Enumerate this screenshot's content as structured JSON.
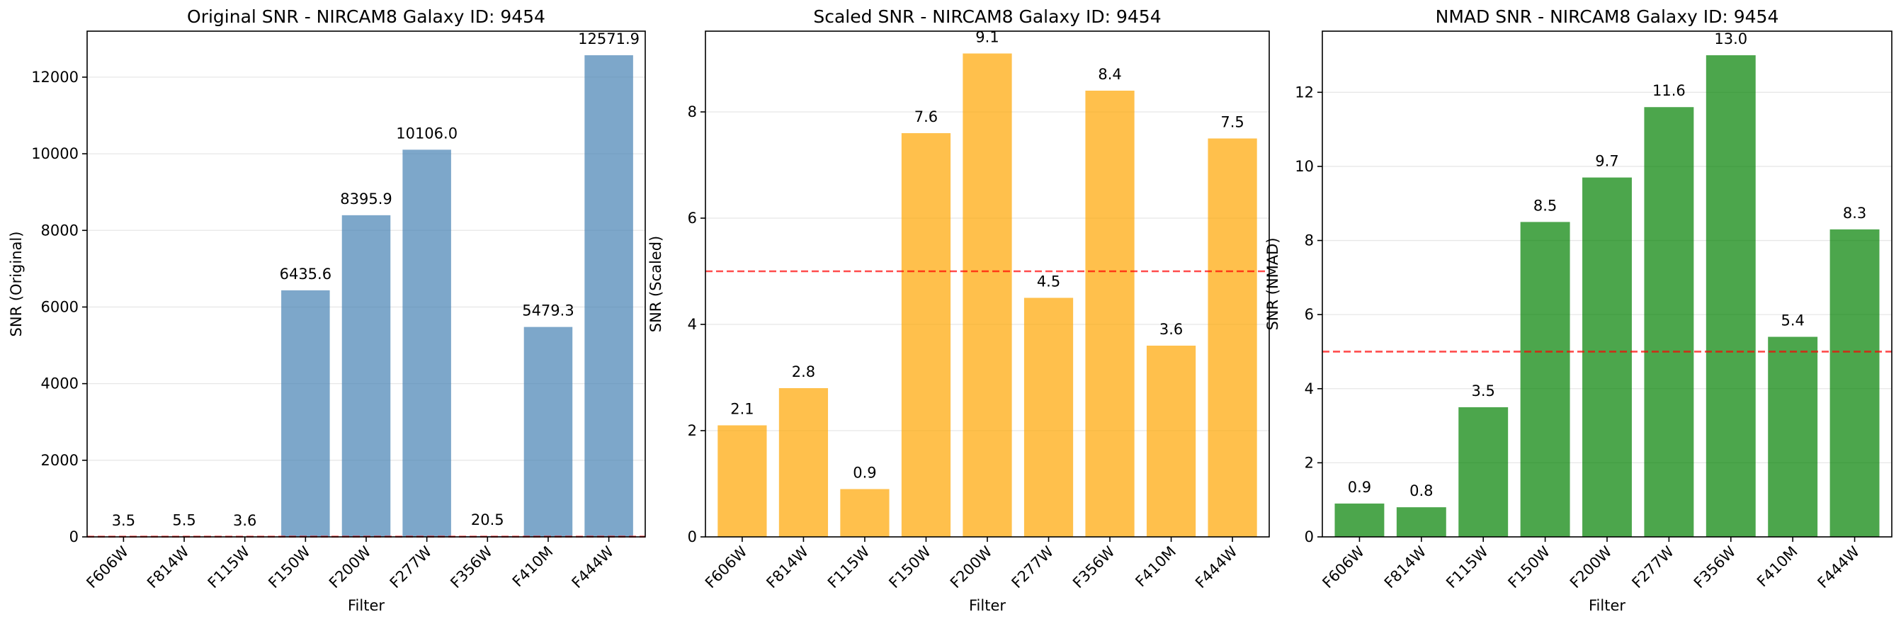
{
  "chart_data": [
    {
      "type": "bar",
      "title": "Original SNR - NIRCAM8 Galaxy ID: 9454",
      "xlabel": "Filter",
      "ylabel": "SNR (Original)",
      "categories": [
        "F606W",
        "F814W",
        "F115W",
        "F150W",
        "F200W",
        "F277W",
        "F356W",
        "F410M",
        "F444W"
      ],
      "values": [
        3.5,
        5.5,
        3.6,
        6435.6,
        8395.9,
        10106.0,
        20.5,
        5479.3,
        12571.9
      ],
      "data_labels": [
        "3.5",
        "5.5",
        "3.6",
        "6435.6",
        "8395.9",
        "10106.0",
        "20.5",
        "5479.3",
        "12571.9"
      ],
      "ylim": [
        0,
        13200
      ],
      "yticks": [
        0,
        2000,
        4000,
        6000,
        8000,
        10000,
        12000
      ],
      "threshold": 5,
      "bar_color": "#4682b4",
      "bar_opacity": 0.7,
      "threshold_color": "#ff0000",
      "grid": "horizontal"
    },
    {
      "type": "bar",
      "title": "Scaled SNR - NIRCAM8 Galaxy ID: 9454",
      "xlabel": "Filter",
      "ylabel": "SNR (Scaled)",
      "categories": [
        "F606W",
        "F814W",
        "F115W",
        "F150W",
        "F200W",
        "F277W",
        "F356W",
        "F410M",
        "F444W"
      ],
      "values": [
        2.1,
        2.8,
        0.9,
        7.6,
        9.1,
        4.5,
        8.4,
        3.6,
        7.5
      ],
      "data_labels": [
        "2.1",
        "2.8",
        "0.9",
        "7.6",
        "9.1",
        "4.5",
        "8.4",
        "3.6",
        "7.5"
      ],
      "ylim": [
        0,
        9.52
      ],
      "yticks": [
        0,
        2,
        4,
        6,
        8
      ],
      "threshold": 5,
      "bar_color": "#ffa500",
      "bar_opacity": 0.7,
      "threshold_color": "#ff0000",
      "grid": "horizontal"
    },
    {
      "type": "bar",
      "title": "NMAD SNR - NIRCAM8 Galaxy ID: 9454",
      "xlabel": "Filter",
      "ylabel": "SNR (NMAD)",
      "categories": [
        "F606W",
        "F814W",
        "F115W",
        "F150W",
        "F200W",
        "F277W",
        "F356W",
        "F410M",
        "F444W"
      ],
      "values": [
        0.9,
        0.8,
        3.5,
        8.5,
        9.7,
        11.6,
        13.0,
        5.4,
        8.3
      ],
      "data_labels": [
        "0.9",
        "0.8",
        "3.5",
        "8.5",
        "9.7",
        "11.6",
        "13.0",
        "5.4",
        "8.3"
      ],
      "ylim": [
        0,
        13.65
      ],
      "yticks": [
        0,
        2,
        4,
        6,
        8,
        10,
        12
      ],
      "threshold": 5,
      "bar_color": "#008000",
      "bar_opacity": 0.7,
      "threshold_color": "#ff0000",
      "grid": "horizontal"
    }
  ]
}
